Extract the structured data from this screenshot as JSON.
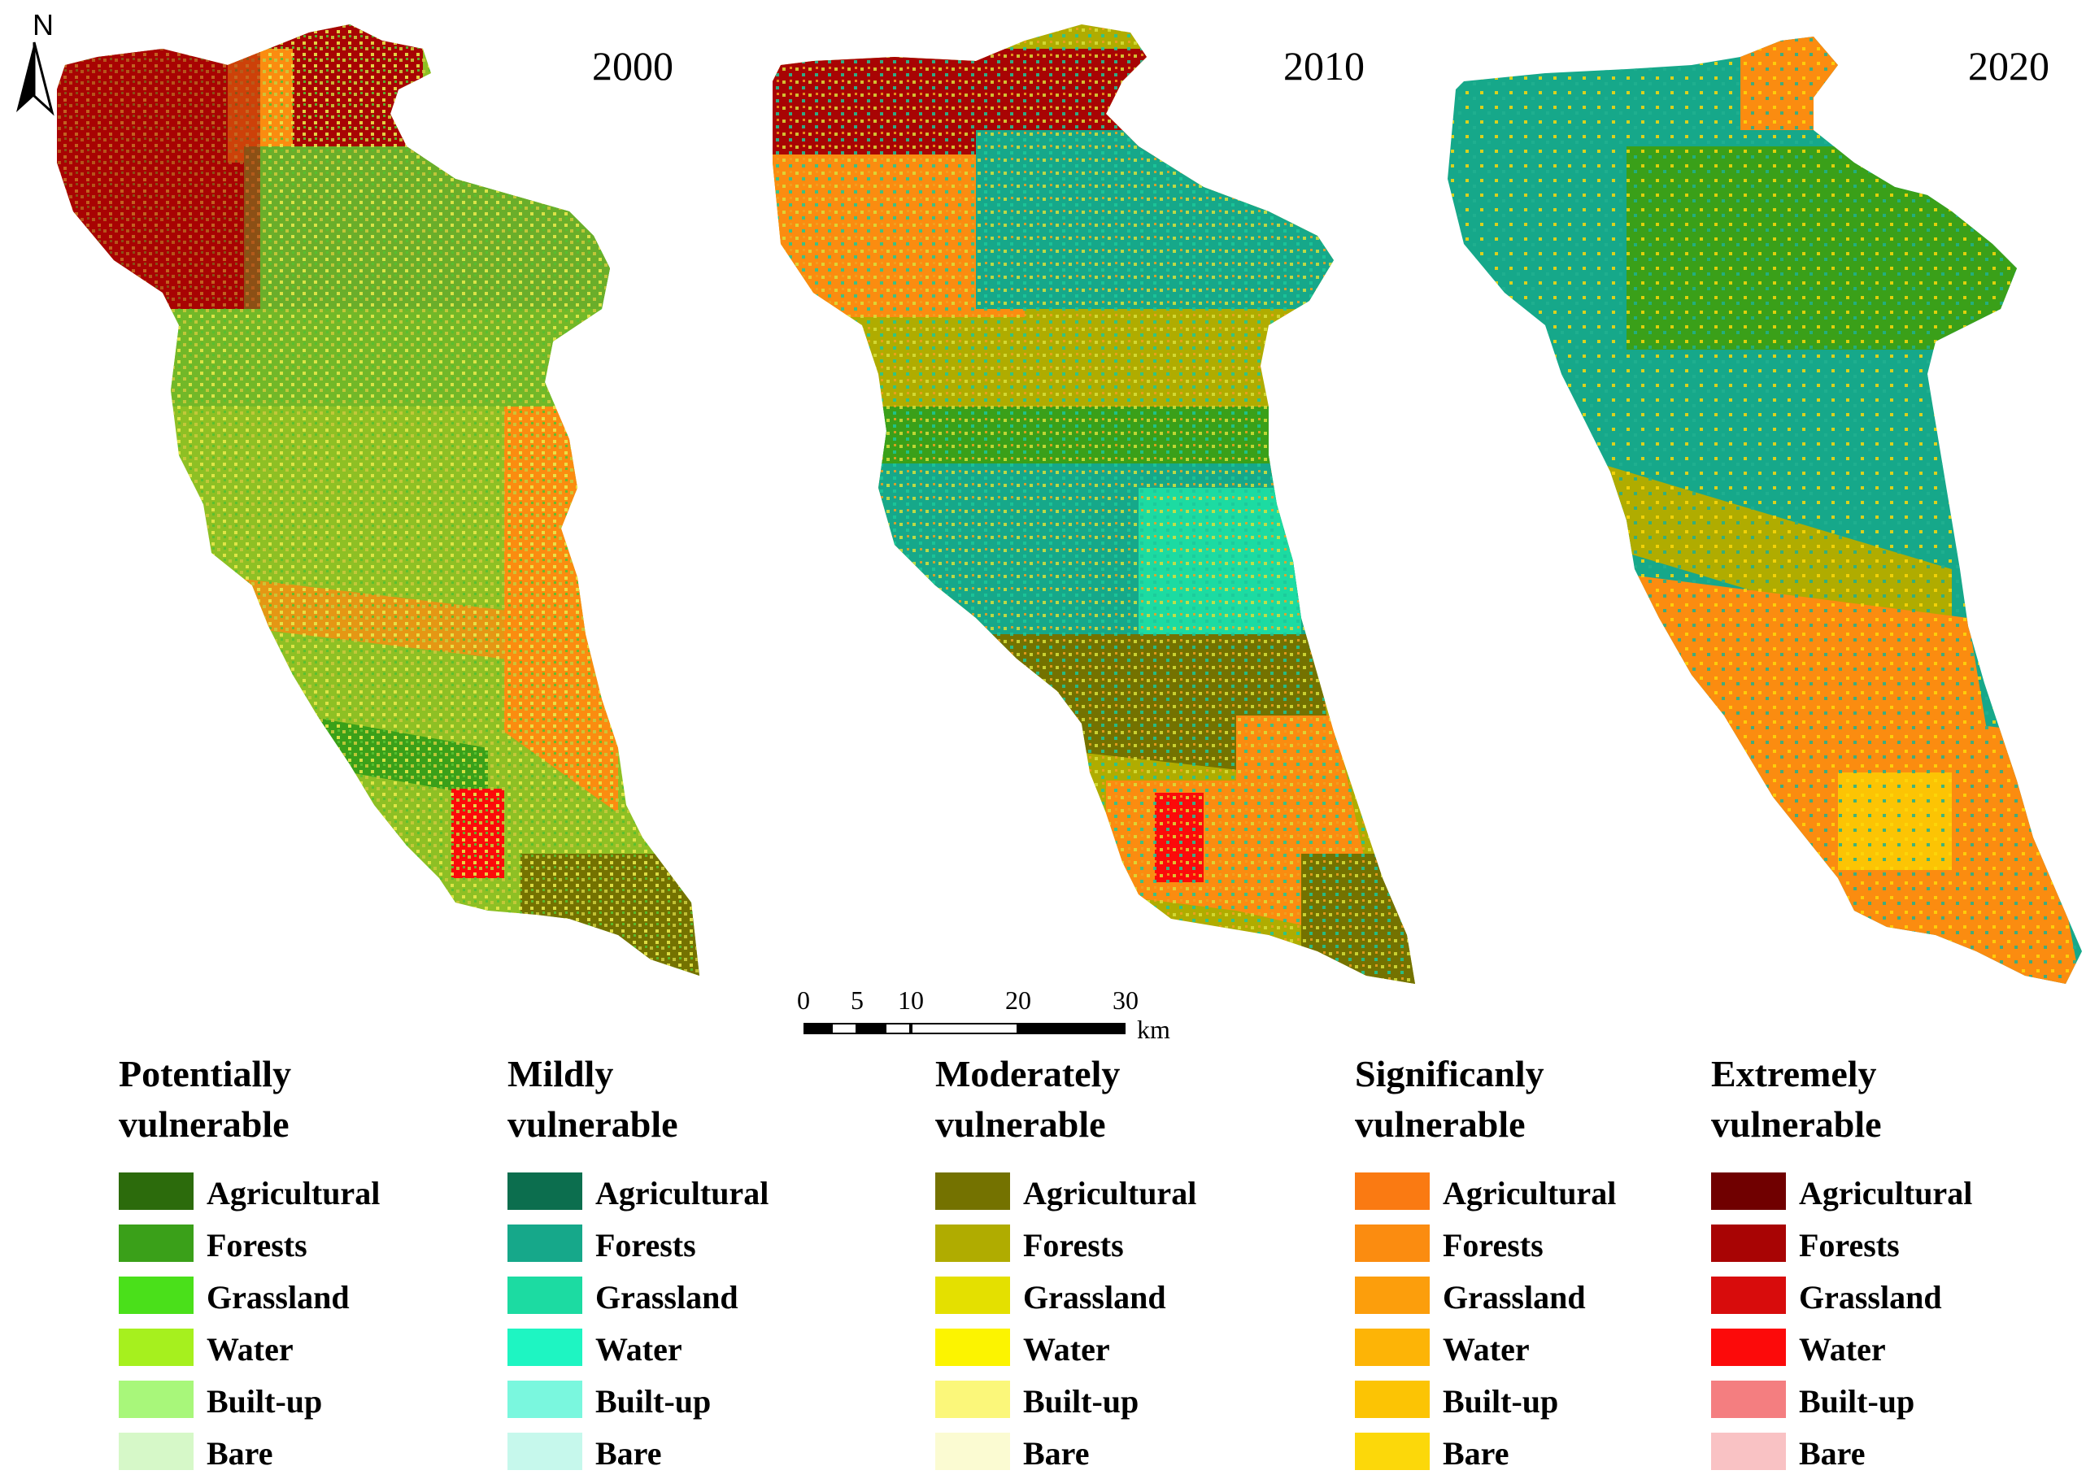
{
  "north": {
    "label": "N"
  },
  "maps": [
    {
      "year": "2000"
    },
    {
      "year": "2010"
    },
    {
      "year": "2020"
    }
  ],
  "scalebar": {
    "ticks": [
      "0",
      "5",
      "10",
      "20",
      "30"
    ],
    "unit": "km"
  },
  "legend": [
    {
      "title_line1": "Potentially",
      "title_line2": "vulnerable",
      "items": [
        {
          "label": "Agricultural",
          "color": "#2c6b0c"
        },
        {
          "label": "Forests",
          "color": "#3aa019"
        },
        {
          "label": "Grassland",
          "color": "#4ae01a"
        },
        {
          "label": "Water",
          "color": "#a6f01e"
        },
        {
          "label": "Built-up",
          "color": "#a8f77a"
        },
        {
          "label": "Bare",
          "color": "#d6f8c8"
        }
      ]
    },
    {
      "title_line1": "Mildly",
      "title_line2": "vulnerable",
      "items": [
        {
          "label": "Agricultural",
          "color": "#0c6e4e"
        },
        {
          "label": "Forests",
          "color": "#16a88a"
        },
        {
          "label": "Grassland",
          "color": "#1cdba2"
        },
        {
          "label": "Water",
          "color": "#1ef5c2"
        },
        {
          "label": "Built-up",
          "color": "#7af7de"
        },
        {
          "label": "Bare",
          "color": "#c6f8ec"
        }
      ]
    },
    {
      "title_line1": "Moderately",
      "title_line2": "vulnerable",
      "items": [
        {
          "label": "Agricultural",
          "color": "#747200"
        },
        {
          "label": "Forests",
          "color": "#b0ac00"
        },
        {
          "label": "Grassland",
          "color": "#e4e000"
        },
        {
          "label": "Water",
          "color": "#fcf400"
        },
        {
          "label": "Built-up",
          "color": "#fbf77a"
        },
        {
          "label": "Bare",
          "color": "#fbfbd2"
        }
      ]
    },
    {
      "title_line1": "Significanly",
      "title_line2": "vulnerable",
      "items": [
        {
          "label": "Agricultural",
          "color": "#fa7a12"
        },
        {
          "label": "Forests",
          "color": "#fb8c10"
        },
        {
          "label": "Grassland",
          "color": "#fc9e0c"
        },
        {
          "label": "Water",
          "color": "#fdb406"
        },
        {
          "label": "Built-up",
          "color": "#fcc404"
        },
        {
          "label": "Bare",
          "color": "#fcd80a"
        }
      ]
    },
    {
      "title_line1": "Extremely",
      "title_line2": "vulnerable",
      "items": [
        {
          "label": "Agricultural",
          "color": "#700000"
        },
        {
          "label": "Forests",
          "color": "#a80404"
        },
        {
          "label": "Grassland",
          "color": "#d80c0c"
        },
        {
          "label": "Water",
          "color": "#fc0a0a"
        },
        {
          "label": "Built-up",
          "color": "#f47e80"
        },
        {
          "label": "Bare",
          "color": "#f9c2c4"
        }
      ]
    }
  ]
}
